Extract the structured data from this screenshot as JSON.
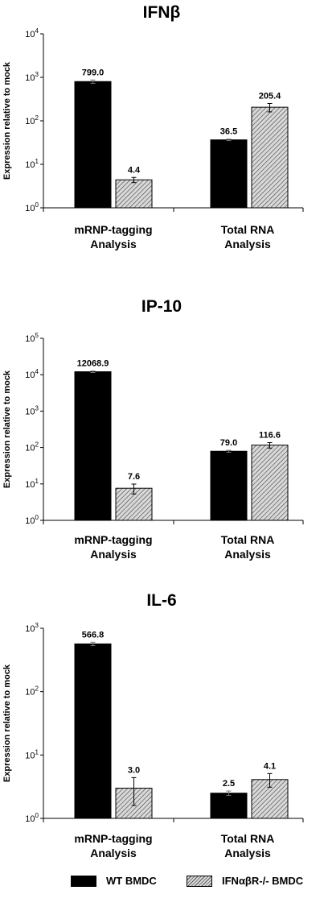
{
  "chart_data": [
    {
      "type": "bar",
      "title": "IFNβ",
      "ylabel": "Expression relative to mock",
      "scale": "log",
      "ylim": [
        1,
        10000
      ],
      "yticks": [
        "10^0",
        "10^1",
        "10^2",
        "10^3",
        "10^4"
      ],
      "categories": [
        [
          "mRNP-tagging",
          "Analysis"
        ],
        [
          "Total RNA",
          "Analysis"
        ]
      ],
      "series": [
        {
          "name": "WT BMDC",
          "values": [
            799.0,
            36.5
          ],
          "labels": [
            "799.0",
            "36.5"
          ],
          "errors": [
            70,
            1.5
          ],
          "fill": "black"
        },
        {
          "name": "IFNαβR-/- BMDC",
          "values": [
            4.4,
            205.4
          ],
          "labels": [
            "4.4",
            "205.4"
          ],
          "errors": [
            0.6,
            45
          ],
          "fill": "hatched"
        }
      ]
    },
    {
      "type": "bar",
      "title": "IP-10",
      "ylabel": "Expression relative to mock",
      "scale": "log",
      "ylim": [
        1,
        100000
      ],
      "yticks": [
        "10^0",
        "10^1",
        "10^2",
        "10^3",
        "10^4",
        "10^5"
      ],
      "categories": [
        [
          "mRNP-tagging",
          "Analysis"
        ],
        [
          "Total RNA",
          "Analysis"
        ]
      ],
      "series": [
        {
          "name": "WT BMDC",
          "values": [
            12068.9,
            79.0
          ],
          "labels": [
            "12068.9",
            "79.0"
          ],
          "errors": [
            600,
            5
          ],
          "fill": "black"
        },
        {
          "name": "IFNαβR-/- BMDC",
          "values": [
            7.6,
            116.6
          ],
          "labels": [
            "7.6",
            "116.6"
          ],
          "errors": [
            2.3,
            20
          ],
          "fill": "hatched"
        }
      ]
    },
    {
      "type": "bar",
      "title": "IL-6",
      "ylabel": "Expression relative to mock",
      "scale": "log",
      "ylim": [
        1,
        1000
      ],
      "yticks": [
        "10^0",
        "10^1",
        "10^2",
        "10^3"
      ],
      "categories": [
        [
          "mRNP-tagging",
          "Analysis"
        ],
        [
          "Total RNA",
          "Analysis"
        ]
      ],
      "series": [
        {
          "name": "WT BMDC",
          "values": [
            566.8,
            2.5
          ],
          "labels": [
            "566.8",
            "2.5"
          ],
          "errors": [
            35,
            0.2
          ],
          "fill": "black"
        },
        {
          "name": "IFNαβR-/- BMDC",
          "values": [
            3.0,
            4.1
          ],
          "labels": [
            "3.0",
            "4.1"
          ],
          "errors": [
            1.4,
            1.0
          ],
          "fill": "hatched"
        }
      ]
    }
  ],
  "legend": {
    "wt_label": "WT BMDC",
    "ko_label": "IFNαβR-/- BMDC",
    "wt_color": "#000000",
    "ko_fill": "hatched"
  }
}
